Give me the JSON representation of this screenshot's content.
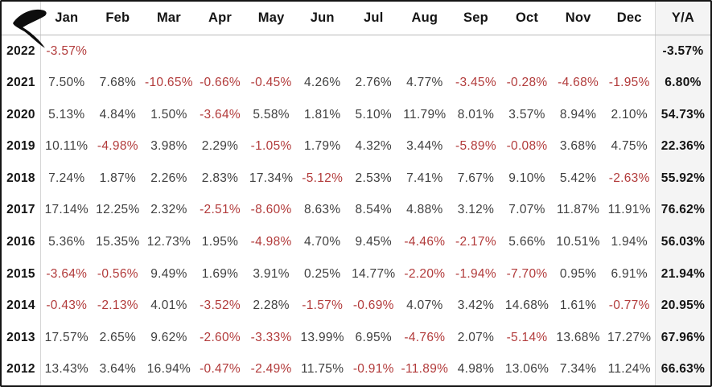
{
  "app": {
    "logo_name": "brand-swoosh-logo"
  },
  "colors": {
    "negative_value": "#b23b3b",
    "positive_value": "#3f3f3f",
    "year_and_total_text": "#141414",
    "ya_column_background": "#f4f4f4",
    "grid_line": "#d6d6d6",
    "header_rule": "#b9b9b9",
    "outer_border": "#141414"
  },
  "chart_data": {
    "type": "table",
    "description": "Monthly percentage returns by year with yearly aggregate column Y/A",
    "columns": [
      "Jan",
      "Feb",
      "Mar",
      "Apr",
      "May",
      "Jun",
      "Jul",
      "Aug",
      "Sep",
      "Oct",
      "Nov",
      "Dec",
      "Y/A"
    ],
    "rows": [
      {
        "year": "2022",
        "monthly": [
          "-3.57%",
          "",
          "",
          "",
          "",
          "",
          "",
          "",
          "",
          "",
          "",
          ""
        ],
        "ya": "-3.57%"
      },
      {
        "year": "2021",
        "monthly": [
          "7.50%",
          "7.68%",
          "-10.65%",
          "-0.66%",
          "-0.45%",
          "4.26%",
          "2.76%",
          "4.77%",
          "-3.45%",
          "-0.28%",
          "-4.68%",
          "-1.95%"
        ],
        "ya": "6.80%"
      },
      {
        "year": "2020",
        "monthly": [
          "5.13%",
          "4.84%",
          "1.50%",
          "-3.64%",
          "5.58%",
          "1.81%",
          "5.10%",
          "11.79%",
          "8.01%",
          "3.57%",
          "8.94%",
          "2.10%"
        ],
        "ya": "54.73%"
      },
      {
        "year": "2019",
        "monthly": [
          "10.11%",
          "-4.98%",
          "3.98%",
          "2.29%",
          "-1.05%",
          "1.79%",
          "4.32%",
          "3.44%",
          "-5.89%",
          "-0.08%",
          "3.68%",
          "4.75%"
        ],
        "ya": "22.36%"
      },
      {
        "year": "2018",
        "monthly": [
          "7.24%",
          "1.87%",
          "2.26%",
          "2.83%",
          "17.34%",
          "-5.12%",
          "2.53%",
          "7.41%",
          "7.67%",
          "9.10%",
          "5.42%",
          "-2.63%"
        ],
        "ya": "55.92%"
      },
      {
        "year": "2017",
        "monthly": [
          "17.14%",
          "12.25%",
          "2.32%",
          "-2.51%",
          "-8.60%",
          "8.63%",
          "8.54%",
          "4.88%",
          "3.12%",
          "7.07%",
          "11.87%",
          "11.91%"
        ],
        "ya": "76.62%"
      },
      {
        "year": "2016",
        "monthly": [
          "5.36%",
          "15.35%",
          "12.73%",
          "1.95%",
          "-4.98%",
          "4.70%",
          "9.45%",
          "-4.46%",
          "-2.17%",
          "5.66%",
          "10.51%",
          "1.94%"
        ],
        "ya": "56.03%"
      },
      {
        "year": "2015",
        "monthly": [
          "-3.64%",
          "-0.56%",
          "9.49%",
          "1.69%",
          "3.91%",
          "0.25%",
          "14.77%",
          "-2.20%",
          "-1.94%",
          "-7.70%",
          "0.95%",
          "6.91%"
        ],
        "ya": "21.94%"
      },
      {
        "year": "2014",
        "monthly": [
          "-0.43%",
          "-2.13%",
          "4.01%",
          "-3.52%",
          "2.28%",
          "-1.57%",
          "-0.69%",
          "4.07%",
          "3.42%",
          "14.68%",
          "1.61%",
          "-0.77%"
        ],
        "ya": "20.95%"
      },
      {
        "year": "2013",
        "monthly": [
          "17.57%",
          "2.65%",
          "9.62%",
          "-2.60%",
          "-3.33%",
          "13.99%",
          "6.95%",
          "-4.76%",
          "2.07%",
          "-5.14%",
          "13.68%",
          "17.27%"
        ],
        "ya": "67.96%"
      },
      {
        "year": "2012",
        "monthly": [
          "13.43%",
          "3.64%",
          "16.94%",
          "-0.47%",
          "-2.49%",
          "11.75%",
          "-0.91%",
          "-11.89%",
          "4.98%",
          "13.06%",
          "7.34%",
          "11.24%"
        ],
        "ya": "66.63%"
      }
    ]
  }
}
